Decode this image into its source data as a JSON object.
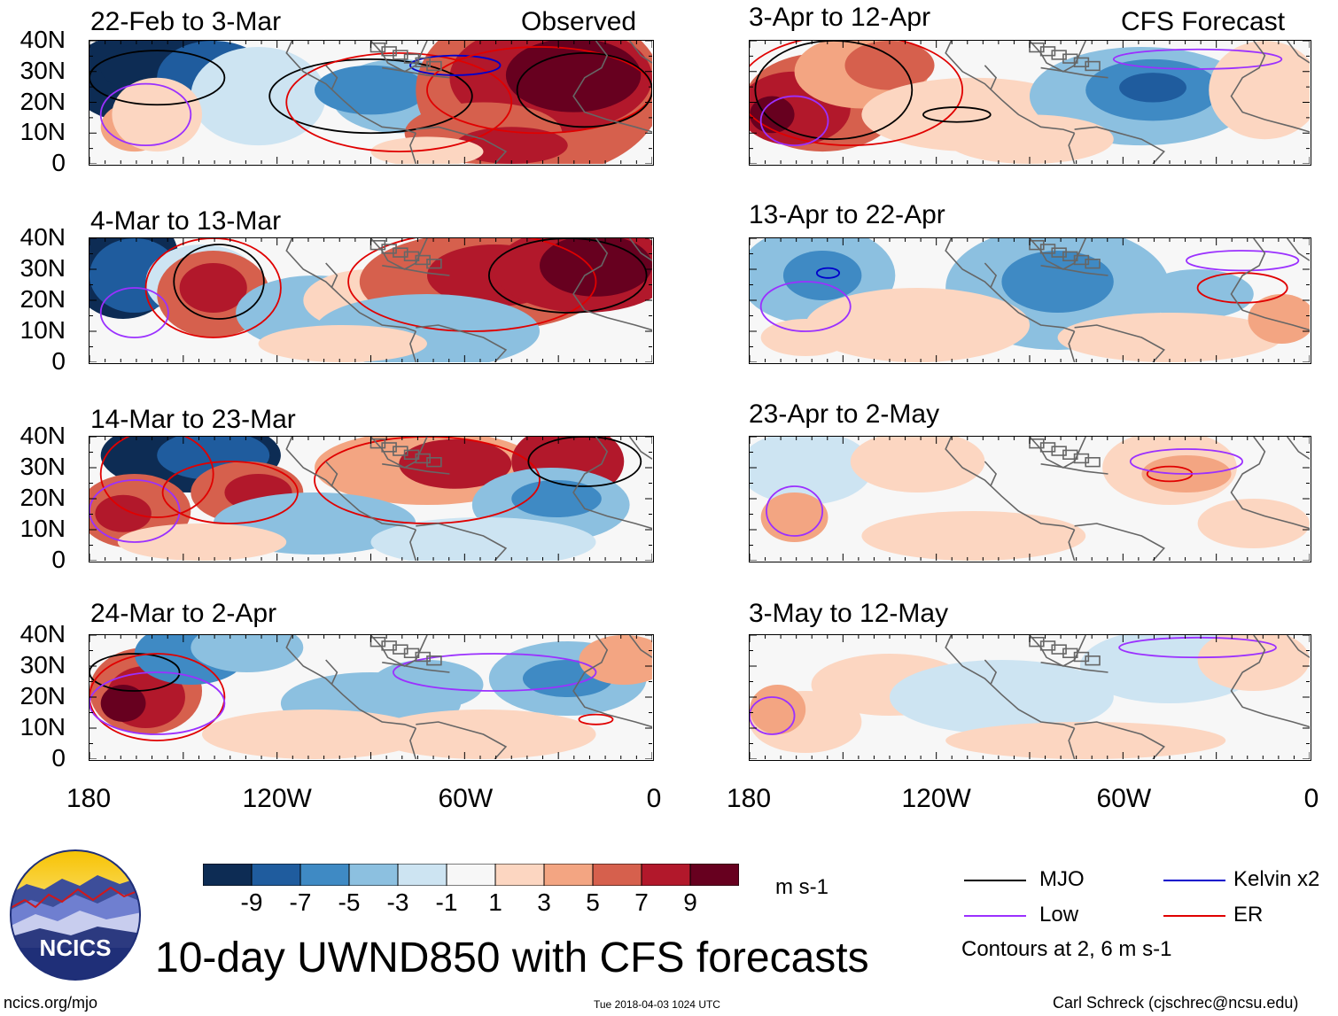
{
  "panels": [
    {
      "label": "22-Feb to 3-Mar",
      "corner": "Observed",
      "kind": "obs1"
    },
    {
      "label": "3-Apr to 12-Apr",
      "corner": "CFS Forecast",
      "kind": "fc1"
    },
    {
      "label": "4-Mar to 13-Mar",
      "corner": "",
      "kind": "obs2"
    },
    {
      "label": "13-Apr to 22-Apr",
      "corner": "",
      "kind": "fc2"
    },
    {
      "label": "14-Mar to 23-Mar",
      "corner": "",
      "kind": "obs3"
    },
    {
      "label": "23-Apr to 2-May",
      "corner": "",
      "kind": "fc3"
    },
    {
      "label": "24-Mar to 2-Apr",
      "corner": "",
      "kind": "obs4"
    },
    {
      "label": "3-May to 12-May",
      "corner": "",
      "kind": "fc4"
    }
  ],
  "y_axis_labels": [
    "40N",
    "30N",
    "20N",
    "10N",
    "0"
  ],
  "x_axis_labels": [
    "180",
    "120W",
    "60W",
    "0"
  ],
  "colorbar": {
    "colors": [
      "#0d2c54",
      "#1f5c9e",
      "#3f8ac4",
      "#8cc0e0",
      "#cde4f2",
      "#f7f7f7",
      "#fcd6c1",
      "#f3a582",
      "#d6604d",
      "#b2182b",
      "#67001f"
    ],
    "labels": [
      "-9",
      "-7",
      "-5",
      "-3",
      "-1",
      "1",
      "3",
      "5",
      "7",
      "9"
    ],
    "units": "m s-1"
  },
  "legend": {
    "items": [
      {
        "name": "MJO",
        "color": "#000000"
      },
      {
        "name": "Kelvin x2",
        "color": "#0000cc"
      },
      {
        "name": "Low",
        "color": "#9b30ff"
      },
      {
        "name": "ER",
        "color": "#e00000"
      }
    ],
    "note": "Contours at 2, 6 m s-1"
  },
  "logo_text": "NCICS",
  "main_title": "10-day UWND850 with CFS forecasts",
  "footer": {
    "left": "ncics.org/mjo",
    "center": "Tue 2018-04-03 1024 UTC",
    "right": "Carl Schreck (cjschrec@ncsu.edu)"
  }
}
